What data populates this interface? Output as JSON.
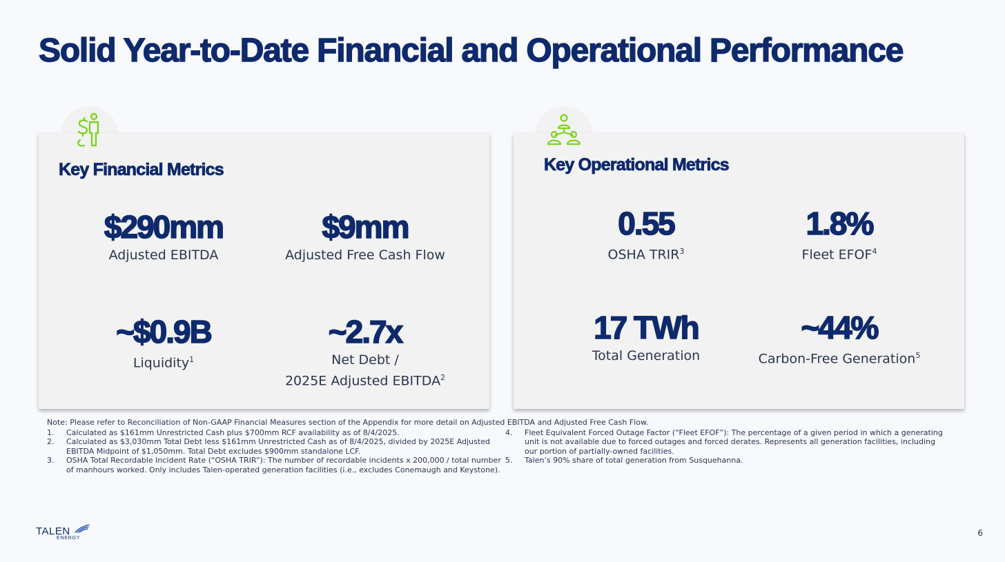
{
  "title": "Solid Year-to-Date Financial and Operational Performance",
  "accent_color": "#7ed321",
  "brand_color": "#0e2a6c",
  "financial": {
    "icon": "dollar-person-icon",
    "title": "Key Financial Metrics",
    "metrics": [
      {
        "value": "$290mm",
        "label": "Adjusted EBITDA",
        "sup": ""
      },
      {
        "value": "$9mm",
        "label": "Adjusted Free Cash Flow",
        "sup": ""
      },
      {
        "value": "~$0.9B",
        "label": "Liquidity",
        "sup": "1"
      },
      {
        "value": "~2.7x",
        "label_line1": "Net Debt /",
        "label_line2": "2025E Adjusted EBITDA",
        "sup": "2"
      }
    ]
  },
  "operational": {
    "icon": "team-network-icon",
    "title": "Key Operational Metrics",
    "metrics": [
      {
        "value": "0.55",
        "label": "OSHA TRIR",
        "sup": "3"
      },
      {
        "value": "1.8%",
        "label": "Fleet EFOF",
        "sup": "4"
      },
      {
        "value": "17 TWh",
        "label": "Total Generation",
        "sup": ""
      },
      {
        "value": "~44%",
        "label": "Carbon-Free Generation",
        "sup": "5"
      }
    ]
  },
  "notes": {
    "head": "Note: Please refer to Reconciliation of Non-GAAP Financial Measures section of the Appendix for more detail on Adjusted EBITDA and Adjusted Free Cash Flow.",
    "left": [
      {
        "num": "1.",
        "text": "Calculated as $161mm Unrestricted Cash plus $700mm RCF availability as of 8/4/2025."
      },
      {
        "num": "2.",
        "text": "Calculated as $3,030mm Total Debt less $161mm Unrestricted Cash as of 8/4/2025, divided by 2025E Adjusted EBITDA Midpoint of $1,050mm. Total Debt excludes $900mm standalone LCF."
      },
      {
        "num": "3.",
        "text": "OSHA Total Recordable Incident Rate (“OSHA TRIR”): The number of recordable incidents x 200,000 / total number of manhours worked. Only includes Talen-operated generation facilities (i.e., excludes Conemaugh and Keystone)."
      }
    ],
    "right": [
      {
        "num": "4.",
        "text": "Fleet Equivalent Forced Outage Factor (“Fleet EFOF”): The percentage of a given period in which a generating unit is not available due to forced outages and forced derates. Represents all generation facilities, including our portion of partially-owned facilities."
      },
      {
        "num": "5.",
        "text": "Talen’s 90% share of total generation from Susquehanna."
      }
    ]
  },
  "logo": {
    "name": "TALEN",
    "sub": "ENERGY"
  },
  "page_number": "6"
}
